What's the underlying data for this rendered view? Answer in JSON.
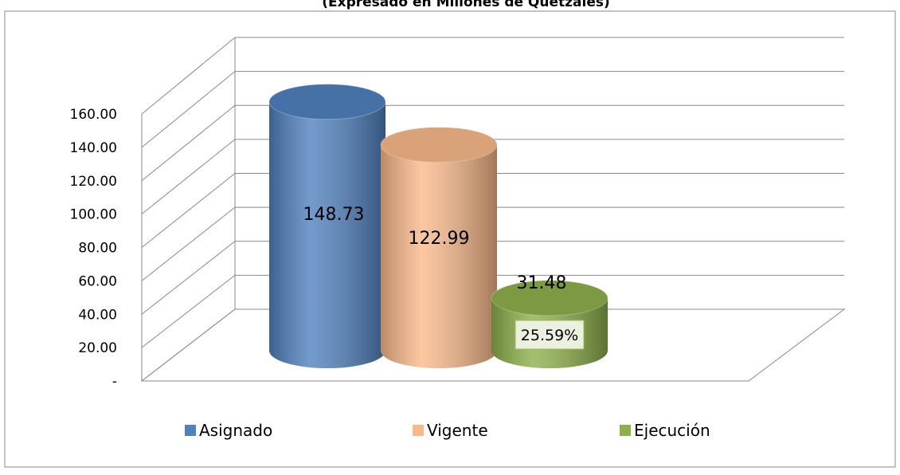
{
  "chart_data": {
    "type": "bar",
    "subtitle": "(Expresado en Millones de Quetzales)",
    "series": [
      {
        "name": "Asignado",
        "color": "#4f81bd",
        "values": [
          148.73
        ]
      },
      {
        "name": "Vigente",
        "color": "#f9b98a",
        "values": [
          122.99
        ]
      },
      {
        "name": "Ejecución",
        "color": "#8db04a",
        "values": [
          31.48
        ]
      }
    ],
    "annotation": "25.59%",
    "ylim": [
      0,
      160
    ],
    "yticks": [
      {
        "value": 0,
        "label": "-"
      },
      {
        "value": 20,
        "label": "20.00"
      },
      {
        "value": 40,
        "label": "40.00"
      },
      {
        "value": 60,
        "label": "60.00"
      },
      {
        "value": 80,
        "label": "80.00"
      },
      {
        "value": 100,
        "label": "100.00"
      },
      {
        "value": 120,
        "label": "120.00"
      },
      {
        "value": 140,
        "label": "140.00"
      },
      {
        "value": 160,
        "label": "160.00"
      }
    ],
    "grid": true,
    "legend": "bottom"
  }
}
